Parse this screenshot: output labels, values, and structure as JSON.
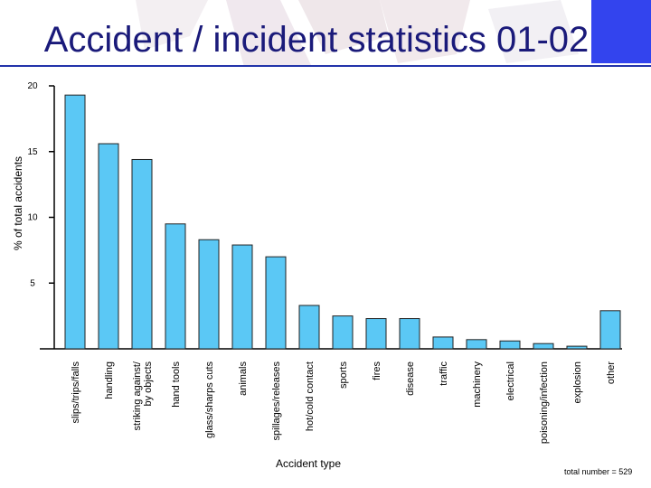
{
  "title": "Accident / incident statistics 01-02",
  "note": "total number = 529",
  "colors": {
    "bar": "#5bc8f5",
    "bar_stroke": "#222222",
    "title": "#1a1a7a",
    "accent": "#3344ee"
  },
  "chart_data": {
    "type": "bar",
    "title": "Accident / incident statistics 01-02",
    "xlabel": "Accident type",
    "ylabel": "% of total accidents",
    "ylim": [
      0,
      20
    ],
    "yticks": [
      "5",
      "10",
      "15",
      "20"
    ],
    "categories": [
      "slips/trips/falls",
      "handling",
      "striking against/\nby objects",
      "hand tools",
      "glass/sharps cuts",
      "animals",
      "spillages/releases",
      "hot/cold contact",
      "sports",
      "fires",
      "disease",
      "traffic",
      "machinery",
      "electrical",
      "poisoning/infection",
      "explosion",
      "other"
    ],
    "values": [
      19.3,
      15.6,
      14.4,
      9.5,
      8.3,
      7.9,
      7.0,
      3.3,
      2.5,
      2.3,
      2.3,
      0.9,
      0.7,
      0.6,
      0.4,
      0.2,
      2.9
    ],
    "grid": false,
    "legend": "none"
  }
}
